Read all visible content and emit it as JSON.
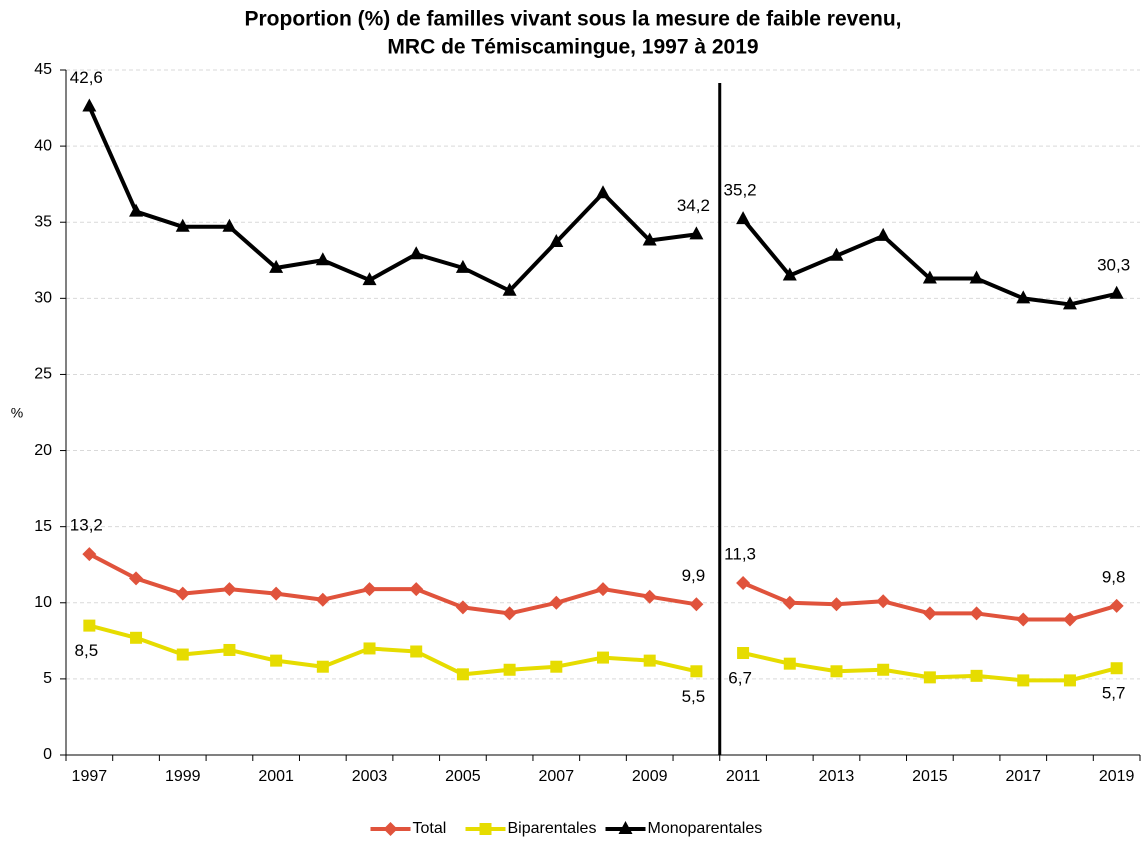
{
  "chart_data": {
    "type": "line",
    "title": "Proportion (%) de familles vivant sous la mesure de faible revenu,",
    "subtitle": "MRC de Témiscamingue, 1997 à 2019",
    "y_label": "%",
    "categories": [
      "1997",
      null,
      "1999",
      null,
      "2001",
      null,
      "2003",
      null,
      "2005",
      null,
      "2007",
      null,
      "2009",
      null,
      "2011",
      null,
      "2013",
      null,
      "2015",
      null,
      "2017",
      null,
      "2019"
    ],
    "break_after": 13,
    "ylim": [
      0,
      45
    ],
    "yticks": [
      0,
      5,
      10,
      15,
      20,
      25,
      30,
      35,
      40,
      45
    ],
    "grid": true,
    "legend": "bottom",
    "series": [
      {
        "name": "Total",
        "color": "#e0533c",
        "marker": "diamond",
        "values": [
          13.2,
          11.6,
          10.6,
          10.9,
          10.6,
          10.2,
          10.9,
          10.9,
          9.7,
          9.3,
          10.0,
          10.9,
          10.4,
          9.9,
          11.3,
          10.0,
          9.9,
          10.1,
          9.3,
          9.3,
          8.9,
          8.9,
          9.8
        ],
        "value_labels": [
          "13,2",
          null,
          null,
          null,
          null,
          null,
          null,
          null,
          null,
          null,
          null,
          null,
          null,
          "9,9",
          "11,3",
          null,
          null,
          null,
          null,
          null,
          null,
          null,
          "9,8"
        ]
      },
      {
        "name": "Biparentales",
        "color": "#e6dc00",
        "marker": "square",
        "values": [
          8.5,
          7.7,
          6.6,
          6.9,
          6.2,
          5.8,
          7.0,
          6.8,
          5.3,
          5.6,
          5.8,
          6.4,
          6.2,
          5.5,
          6.7,
          6.0,
          5.5,
          5.6,
          5.1,
          5.2,
          4.9,
          4.9,
          5.7
        ],
        "value_labels": [
          "8,5",
          null,
          null,
          null,
          null,
          null,
          null,
          null,
          null,
          null,
          null,
          null,
          null,
          "5,5",
          "6,7",
          null,
          null,
          null,
          null,
          null,
          null,
          null,
          "5,7"
        ]
      },
      {
        "name": "Monoparentales",
        "color": "#000000",
        "marker": "triangle",
        "values": [
          42.6,
          35.7,
          34.7,
          34.7,
          32.0,
          32.5,
          31.2,
          32.9,
          32.0,
          30.5,
          33.7,
          36.9,
          33.8,
          34.2,
          35.2,
          31.5,
          32.8,
          34.1,
          31.3,
          31.3,
          30.0,
          29.6,
          30.3
        ],
        "value_labels": [
          "42,6",
          null,
          null,
          null,
          null,
          null,
          null,
          null,
          null,
          null,
          null,
          null,
          null,
          "34,2",
          "35,2",
          null,
          null,
          null,
          null,
          null,
          null,
          null,
          "30,3"
        ]
      }
    ]
  }
}
